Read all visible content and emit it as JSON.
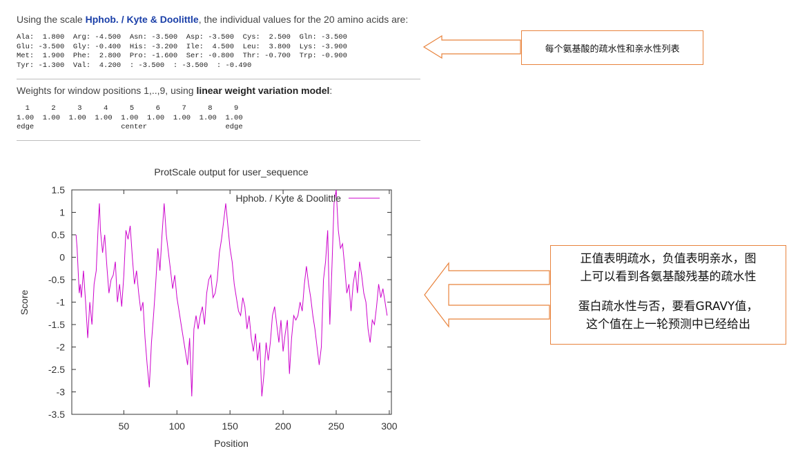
{
  "intro": {
    "prefix": "Using the scale ",
    "scale_name": "Hphob. / Kyte & Doolittle",
    "suffix": ", the individual values for the 20 amino acids are:"
  },
  "aa_table": [
    "Ala:  1.800  Arg: -4.500  Asn: -3.500  Asp: -3.500  Cys:  2.500  Gln: -3.500",
    "Glu: -3.500  Gly: -0.400  His: -3.200  Ile:  4.500  Leu:  3.800  Lys: -3.900",
    "Met:  1.900  Phe:  2.800  Pro: -1.600  Ser: -0.800  Thr: -0.700  Trp: -0.900",
    "Tyr: -1.300  Val:  4.200  : -3.500  : -3.500  : -0.490"
  ],
  "weights": {
    "prefix": "Weights for window positions 1,..,9, using ",
    "model": "linear weight variation model",
    "suffix": ":",
    "table": [
      "  1     2     3     4     5     6     7     8     9",
      "1.00  1.00  1.00  1.00  1.00  1.00  1.00  1.00  1.00",
      "edge                    center                  edge"
    ]
  },
  "notes": {
    "note1": "每个氨基酸的疏水性和亲水性列表",
    "note2_line1": "正值表明疏水，负值表明亲水，图",
    "note2_line2": "上可以看到各氨基酸残基的疏水性",
    "note2_line3": "蛋白疏水性与否，要看GRAVY值，",
    "note2_line4": "这个值在上一轮预测中已经给出"
  },
  "colors": {
    "series": "#cc00cc",
    "arrow": "#e8823b"
  },
  "chart_data": {
    "type": "line",
    "title": "ProtScale output for user_sequence",
    "xlabel": "Position",
    "ylabel": "Score",
    "xlim": [
      1,
      302
    ],
    "ylim": [
      -3.5,
      1.5
    ],
    "xticks": [
      50,
      100,
      150,
      200,
      250,
      300
    ],
    "yticks": [
      -3.5,
      -3,
      -2.5,
      -2,
      -1.5,
      -1,
      -0.5,
      0,
      0.5,
      1,
      1.5
    ],
    "ytick_labels": [
      "-3.5",
      "-3",
      "-2.5",
      "-2",
      "-1.5",
      "-1",
      "-0.5",
      "0",
      "0.5",
      "1",
      "1.5"
    ],
    "legend_position": "top-right",
    "series": [
      {
        "name": "Hphob. / Kyte & Doolittle",
        "x": [
          5,
          6,
          7,
          8,
          9,
          10,
          12,
          14,
          16,
          18,
          20,
          22,
          24,
          26,
          27,
          28,
          30,
          32,
          34,
          36,
          38,
          40,
          42,
          44,
          46,
          48,
          50,
          52,
          54,
          56,
          58,
          60,
          62,
          64,
          66,
          68,
          70,
          72,
          74,
          76,
          78,
          80,
          82,
          84,
          86,
          88,
          90,
          92,
          94,
          96,
          98,
          100,
          102,
          104,
          106,
          108,
          110,
          112,
          114,
          116,
          118,
          120,
          122,
          124,
          126,
          128,
          130,
          132,
          134,
          136,
          138,
          140,
          142,
          144,
          146,
          148,
          150,
          152,
          154,
          156,
          158,
          160,
          162,
          164,
          166,
          168,
          170,
          172,
          174,
          176,
          178,
          180,
          182,
          184,
          186,
          188,
          190,
          192,
          194,
          196,
          198,
          200,
          202,
          204,
          206,
          208,
          210,
          212,
          214,
          216,
          218,
          220,
          222,
          224,
          226,
          228,
          230,
          232,
          234,
          236,
          238,
          240,
          242,
          244,
          246,
          248,
          250,
          252,
          254,
          256,
          258,
          260,
          262,
          264,
          266,
          268,
          270,
          272,
          274,
          276,
          278,
          280,
          282,
          284,
          286,
          288,
          290,
          292,
          294,
          296,
          298
        ],
        "y": [
          0.5,
          0.2,
          -0.3,
          -0.8,
          -0.6,
          -0.9,
          -0.3,
          -1.0,
          -1.8,
          -1.0,
          -1.5,
          -0.6,
          -0.3,
          0.8,
          1.2,
          0.6,
          0.1,
          0.5,
          -0.2,
          -0.8,
          -0.5,
          -0.4,
          -0.1,
          -1.0,
          -0.6,
          -1.1,
          -0.4,
          0.6,
          0.4,
          0.7,
          0.0,
          -0.6,
          -0.3,
          -0.8,
          -1.2,
          -1.0,
          -1.8,
          -2.4,
          -2.9,
          -1.9,
          -1.3,
          -0.6,
          0.2,
          -0.3,
          0.5,
          1.2,
          0.5,
          0.1,
          -0.3,
          -0.7,
          -0.4,
          -0.9,
          -1.2,
          -1.5,
          -1.8,
          -2.1,
          -2.4,
          -1.8,
          -3.1,
          -1.6,
          -1.3,
          -1.6,
          -1.3,
          -1.1,
          -1.5,
          -0.8,
          -0.5,
          -0.4,
          -0.9,
          -0.8,
          -0.5,
          0.1,
          0.4,
          0.8,
          1.2,
          0.7,
          0.2,
          -0.1,
          -0.6,
          -0.9,
          -1.2,
          -1.3,
          -0.9,
          -1.1,
          -1.6,
          -1.3,
          -1.8,
          -2.1,
          -1.7,
          -2.3,
          -1.9,
          -3.1,
          -2.6,
          -1.9,
          -2.3,
          -1.9,
          -1.3,
          -1.1,
          -1.5,
          -1.9,
          -1.4,
          -2.1,
          -1.7,
          -1.4,
          -2.6,
          -1.8,
          -1.3,
          -1.4,
          -1.3,
          -1.0,
          -1.2,
          -0.6,
          -0.2,
          -0.6,
          -0.9,
          -1.3,
          -1.6,
          -2.0,
          -2.4,
          -2.0,
          -0.5,
          -0.1,
          0.6,
          -1.5,
          -0.2,
          1.2,
          1.5,
          0.6,
          0.2,
          0.3,
          -0.2,
          -0.8,
          -0.6,
          -1.2,
          -0.6,
          -0.3,
          -0.8,
          -0.1,
          -0.4,
          -0.8,
          -1.0,
          -1.6,
          -1.9,
          -1.4,
          -1.5,
          -1.1,
          -0.6,
          -0.9,
          -0.7,
          -1.0,
          -1.3
        ]
      }
    ]
  }
}
